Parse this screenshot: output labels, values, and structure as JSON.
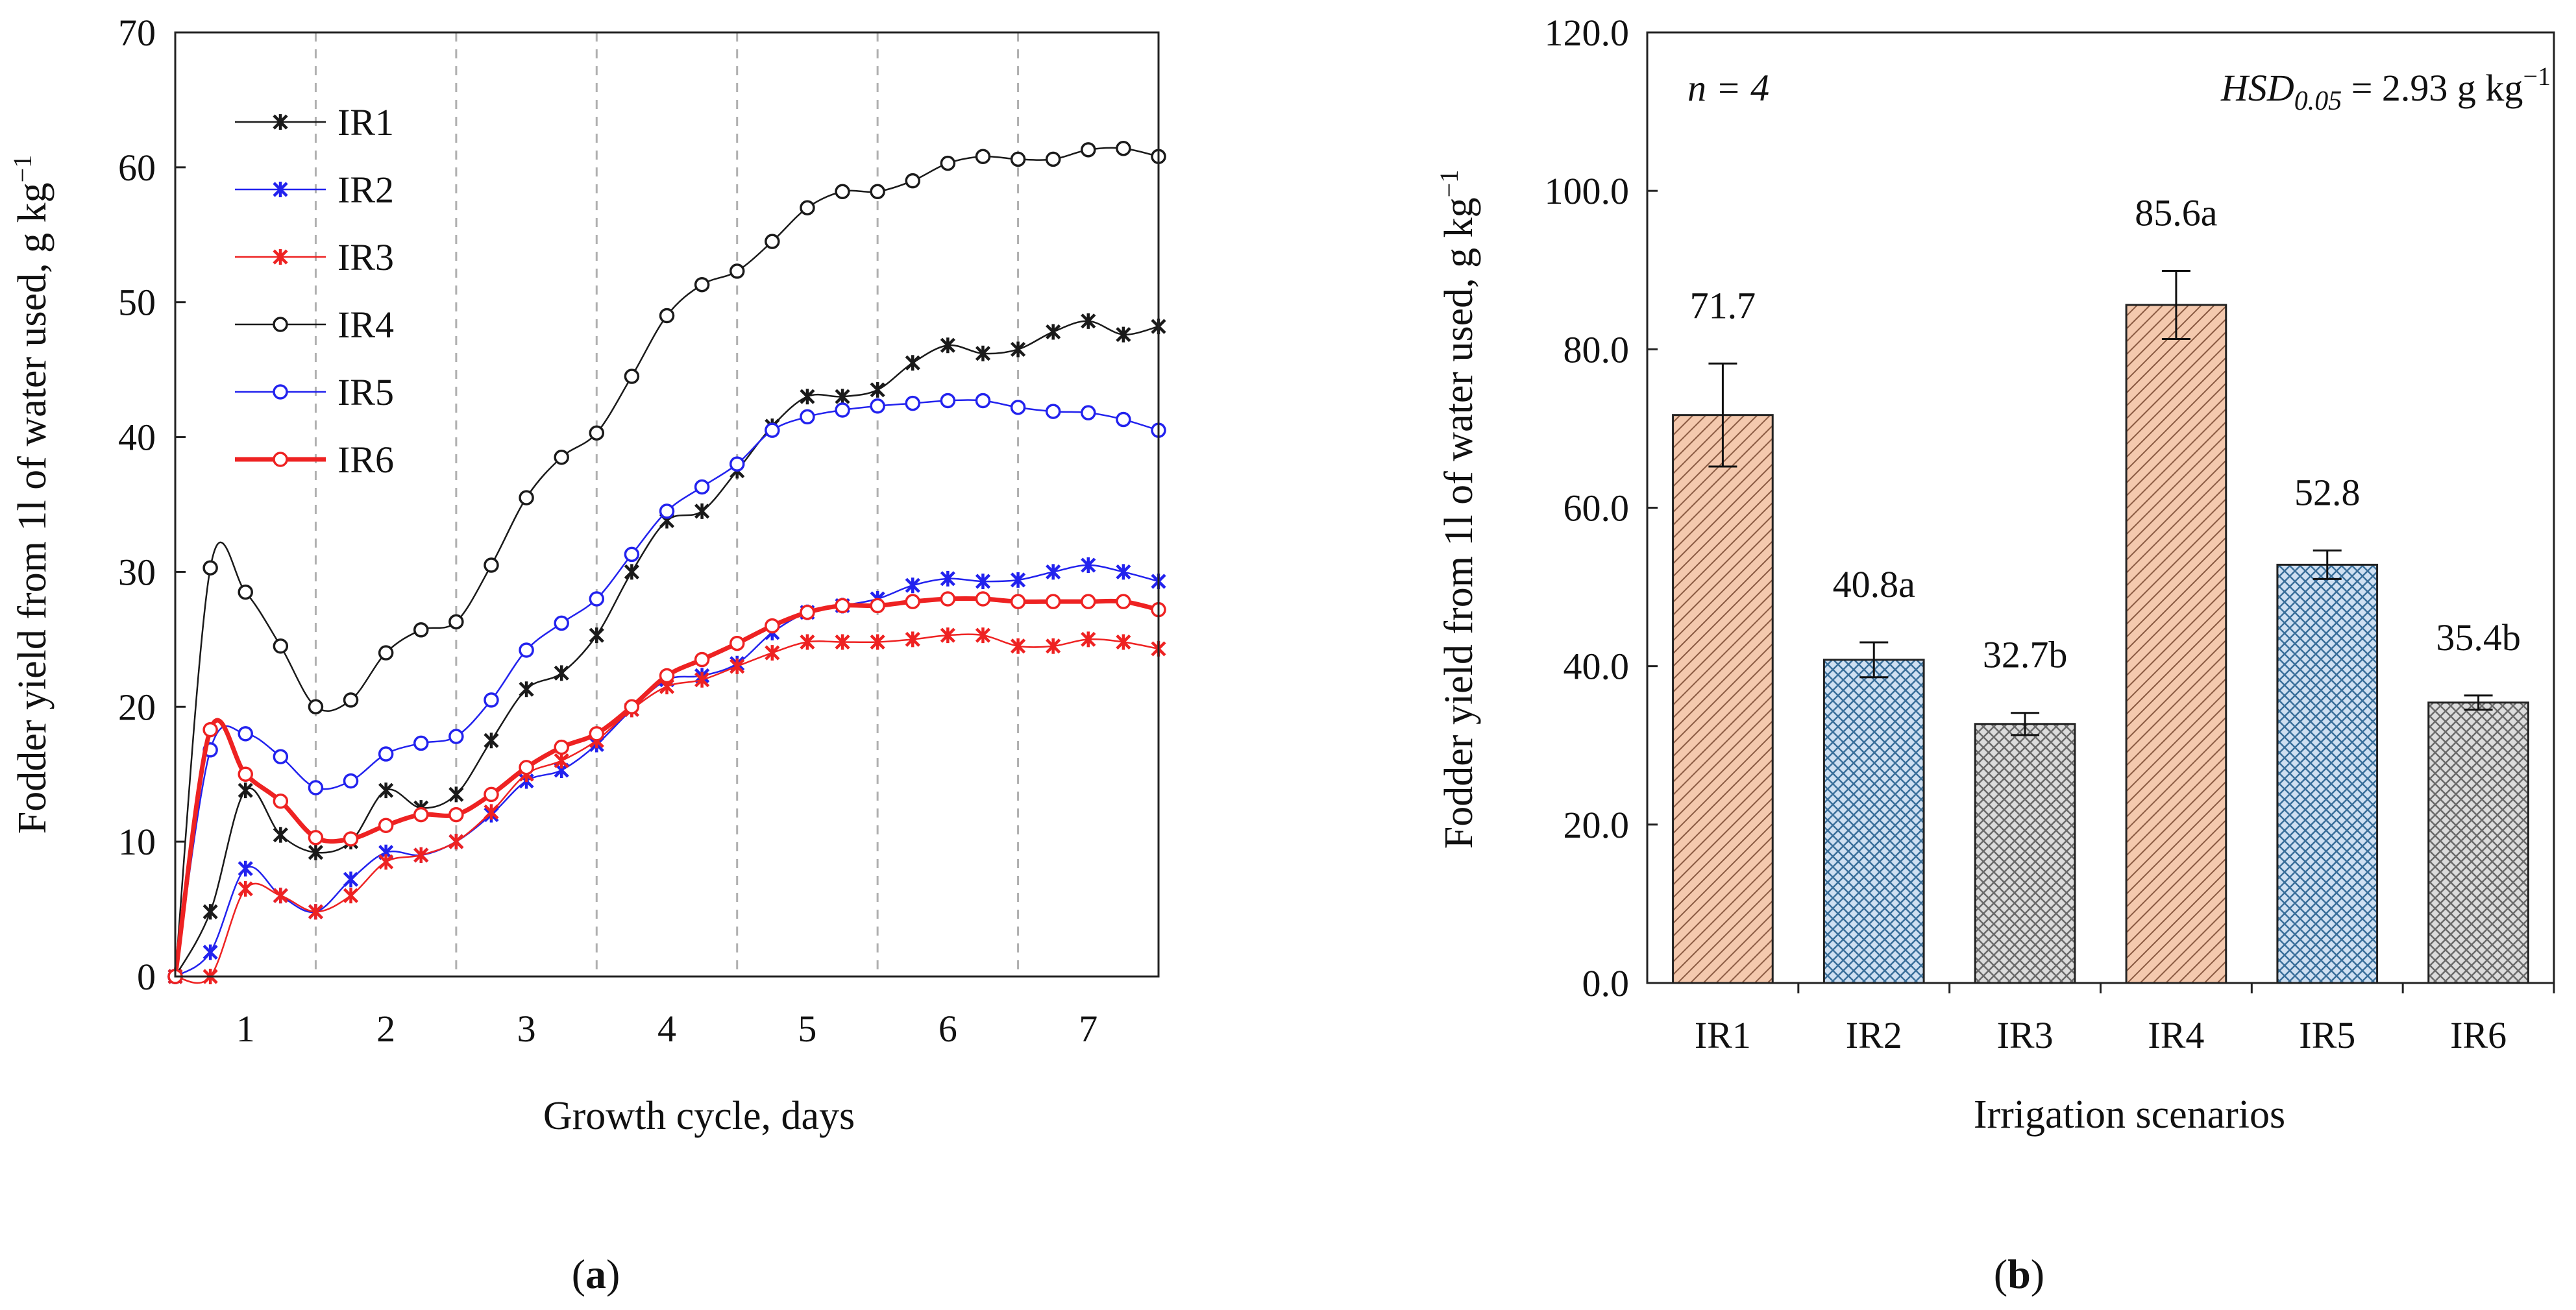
{
  "panel_a": {
    "caption_open": "(",
    "caption_letter": "a",
    "caption_close": ")"
  },
  "panel_b": {
    "caption_open": "(",
    "caption_letter": "b",
    "caption_close": ")",
    "n_text": "n = 4",
    "hsd_prefix": "HSD",
    "hsd_sub": "0.05",
    "hsd_value": " = 2.93 g kg",
    "hsd_exp": "−1"
  },
  "colors": {
    "black": "#1a1a1a",
    "blue": "#2222ee",
    "red": "#ee2222",
    "bar_orange_fill": "#f4c9ae",
    "bar_orange_hatch": "#8a5a42",
    "bar_blue_fill": "#cfe0f2",
    "bar_blue_hatch": "#3a6f9a",
    "bar_gray_fill": "#dcdcdc",
    "bar_gray_hatch": "#6a6a6a",
    "grid_dash": "#b0b0b0"
  },
  "chart_data": [
    {
      "type": "line",
      "title": "",
      "xlabel": "Growth cycle, days",
      "ylabel_main": "Fodder yield from 1l of water used, g kg",
      "ylabel_exp": "−1",
      "xlim": [
        0.5,
        7.5
      ],
      "ylim": [
        0,
        70
      ],
      "xticks": [
        1,
        2,
        3,
        4,
        5,
        6,
        7
      ],
      "yticks": [
        0,
        10,
        20,
        30,
        40,
        50,
        60,
        70
      ],
      "grid_x": [
        1.5,
        2.5,
        3.5,
        4.5,
        5.5,
        6.5
      ],
      "legend_position": "top-left",
      "x": [
        0.5,
        0.75,
        1.0,
        1.25,
        1.5,
        1.75,
        2.0,
        2.25,
        2.5,
        2.75,
        3.0,
        3.25,
        3.5,
        3.75,
        4.0,
        4.25,
        4.5,
        4.75,
        5.0,
        5.25,
        5.5,
        5.75,
        6.0,
        6.25,
        6.5,
        6.75,
        7.0,
        7.25,
        7.5
      ],
      "series": [
        {
          "name": "IR1",
          "color": "black",
          "marker": "star",
          "width": 2.5,
          "values": [
            0,
            4.8,
            13.8,
            10.5,
            9.2,
            10.0,
            13.8,
            12.5,
            13.5,
            17.5,
            21.3,
            22.5,
            25.3,
            30.0,
            33.8,
            34.5,
            37.5,
            40.8,
            43.0,
            43.0,
            43.5,
            45.5,
            46.8,
            46.2,
            46.5,
            47.8,
            48.6,
            47.6,
            48.2
          ]
        },
        {
          "name": "IR2",
          "color": "blue",
          "marker": "star",
          "width": 2.5,
          "values": [
            0,
            1.8,
            8.0,
            6.0,
            4.8,
            7.2,
            9.2,
            9.0,
            10.0,
            12.0,
            14.5,
            15.3,
            17.2,
            19.8,
            22.0,
            22.3,
            23.2,
            25.5,
            27.0,
            27.5,
            28.0,
            29.0,
            29.5,
            29.3,
            29.4,
            30.0,
            30.5,
            30.0,
            29.3
          ]
        },
        {
          "name": "IR3",
          "color": "red",
          "marker": "star",
          "width": 2.5,
          "values": [
            0,
            0,
            6.5,
            6.0,
            4.8,
            6.0,
            8.5,
            9.0,
            10.0,
            12.2,
            15.0,
            16.0,
            17.5,
            19.8,
            21.5,
            22.0,
            23.0,
            24.0,
            24.8,
            24.8,
            24.8,
            25.0,
            25.3,
            25.3,
            24.5,
            24.5,
            25.0,
            24.8,
            24.3
          ]
        },
        {
          "name": "IR4",
          "color": "black",
          "marker": "circle",
          "width": 2.5,
          "values": [
            0,
            30.3,
            28.5,
            24.5,
            20.0,
            20.5,
            24.0,
            25.7,
            26.3,
            30.5,
            35.5,
            38.5,
            40.3,
            44.5,
            49.0,
            51.3,
            52.3,
            54.5,
            57.0,
            58.2,
            58.2,
            59.0,
            60.3,
            60.8,
            60.6,
            60.6,
            61.3,
            61.4,
            60.8
          ]
        },
        {
          "name": "IR5",
          "color": "blue",
          "marker": "circle",
          "width": 2.5,
          "values": [
            0,
            16.8,
            18.0,
            16.3,
            14.0,
            14.5,
            16.5,
            17.3,
            17.8,
            20.5,
            24.2,
            26.2,
            28.0,
            31.3,
            34.5,
            36.3,
            38.0,
            40.5,
            41.5,
            42.0,
            42.3,
            42.5,
            42.7,
            42.7,
            42.2,
            41.9,
            41.8,
            41.3,
            40.5
          ]
        },
        {
          "name": "IR6",
          "color": "red",
          "marker": "circle",
          "width": 7,
          "values": [
            0,
            18.3,
            15.0,
            13.0,
            10.3,
            10.2,
            11.2,
            12.0,
            12.0,
            13.5,
            15.5,
            17.0,
            18.0,
            20.0,
            22.3,
            23.5,
            24.7,
            26.0,
            27.0,
            27.5,
            27.5,
            27.8,
            28.0,
            28.0,
            27.8,
            27.8,
            27.8,
            27.8,
            27.2
          ]
        }
      ]
    },
    {
      "type": "bar",
      "title": "",
      "xlabel": "Irrigation scenarios",
      "ylabel_main": "Fodder yield from 1l of water used, g kg",
      "ylabel_exp": "−1",
      "ylim": [
        0,
        120
      ],
      "yticks": [
        "0.0",
        "20.0",
        "40.0",
        "60.0",
        "80.0",
        "100.0",
        "120.0"
      ],
      "categories": [
        "IR1",
        "IR2",
        "IR3",
        "IR4",
        "IR5",
        "IR6"
      ],
      "values": [
        71.7,
        40.8,
        32.7,
        85.6,
        52.8,
        35.4
      ],
      "errors": [
        6.5,
        2.2,
        1.4,
        4.3,
        1.8,
        0.9
      ],
      "labels": [
        "71.7",
        "40.8a",
        "32.7b",
        "85.6a",
        "52.8",
        "35.4b"
      ],
      "styles": [
        "orange-diag",
        "blue-cross",
        "gray-cross",
        "orange-diag",
        "blue-cross",
        "gray-cross"
      ]
    }
  ]
}
